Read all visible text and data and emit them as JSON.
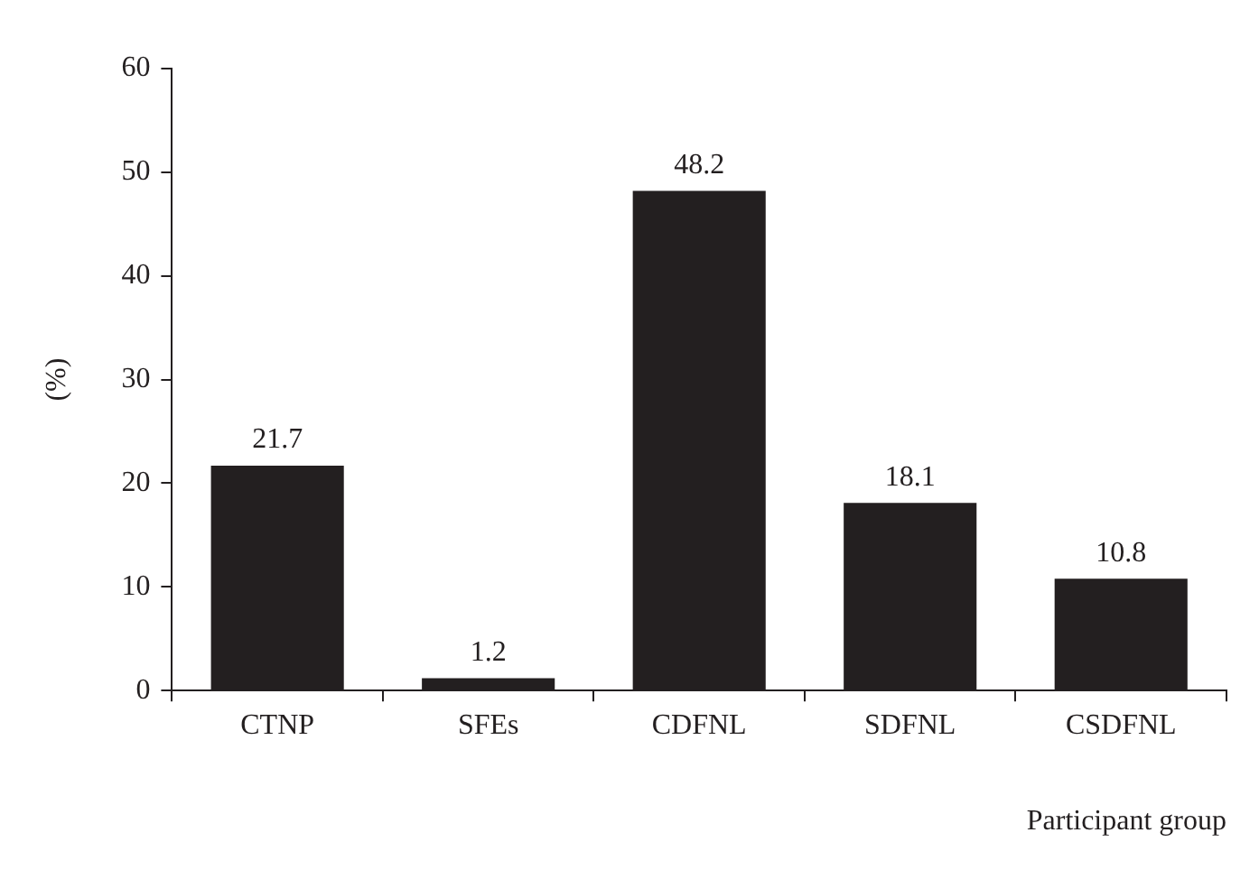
{
  "chart_data": {
    "type": "bar",
    "xlabel": "Participant group",
    "ylabel": "(%)",
    "categories": [
      "CTNP",
      "SFEs",
      "CDFNL",
      "SDFNL",
      "CSDFNL"
    ],
    "values": [
      21.7,
      1.2,
      48.2,
      18.1,
      10.8
    ],
    "color": "#231f20",
    "ylim": [
      0,
      60
    ],
    "yticks": [
      0,
      10,
      20,
      30,
      40,
      50,
      60
    ],
    "data_labels": true
  }
}
